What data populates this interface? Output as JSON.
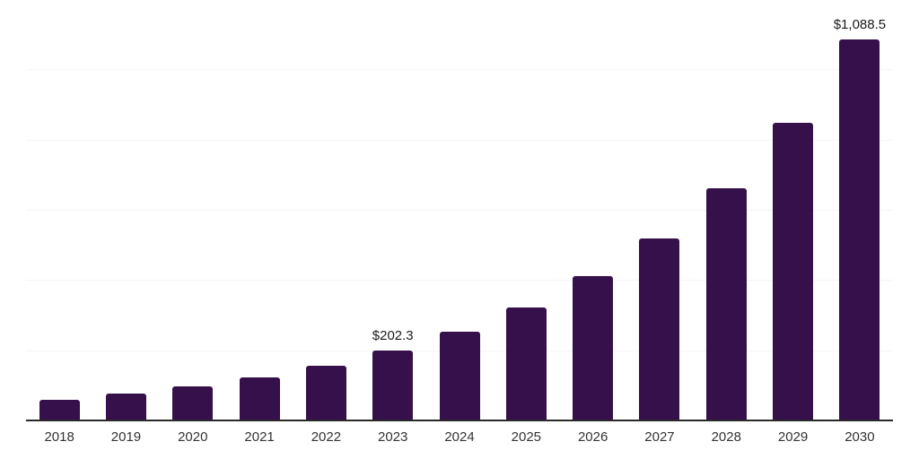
{
  "chart_data": {
    "type": "bar",
    "title": "",
    "xlabel": "",
    "ylabel": "",
    "categories": [
      "2018",
      "2019",
      "2020",
      "2021",
      "2022",
      "2023",
      "2024",
      "2025",
      "2026",
      "2027",
      "2028",
      "2029",
      "2030"
    ],
    "values": [
      61,
      78,
      99,
      126,
      159,
      202.3,
      255,
      324,
      413,
      520,
      665,
      850,
      1088.5
    ],
    "data_labels": [
      "",
      "",
      "",
      "",
      "",
      "$202.3",
      "",
      "",
      "",
      "",
      "",
      "",
      "$1,088.5"
    ],
    "ylim": [
      0,
      1200
    ],
    "gridline_interval": 200,
    "grid": "horizontal-only",
    "legend": "none",
    "colors": {
      "bar": "#36104A",
      "axis_line": "#2A2A2A",
      "gridline": "#F5F5F5",
      "tick_label": "#333333",
      "data_label": "#1A1A1A",
      "background": "#FFFFFF"
    }
  }
}
